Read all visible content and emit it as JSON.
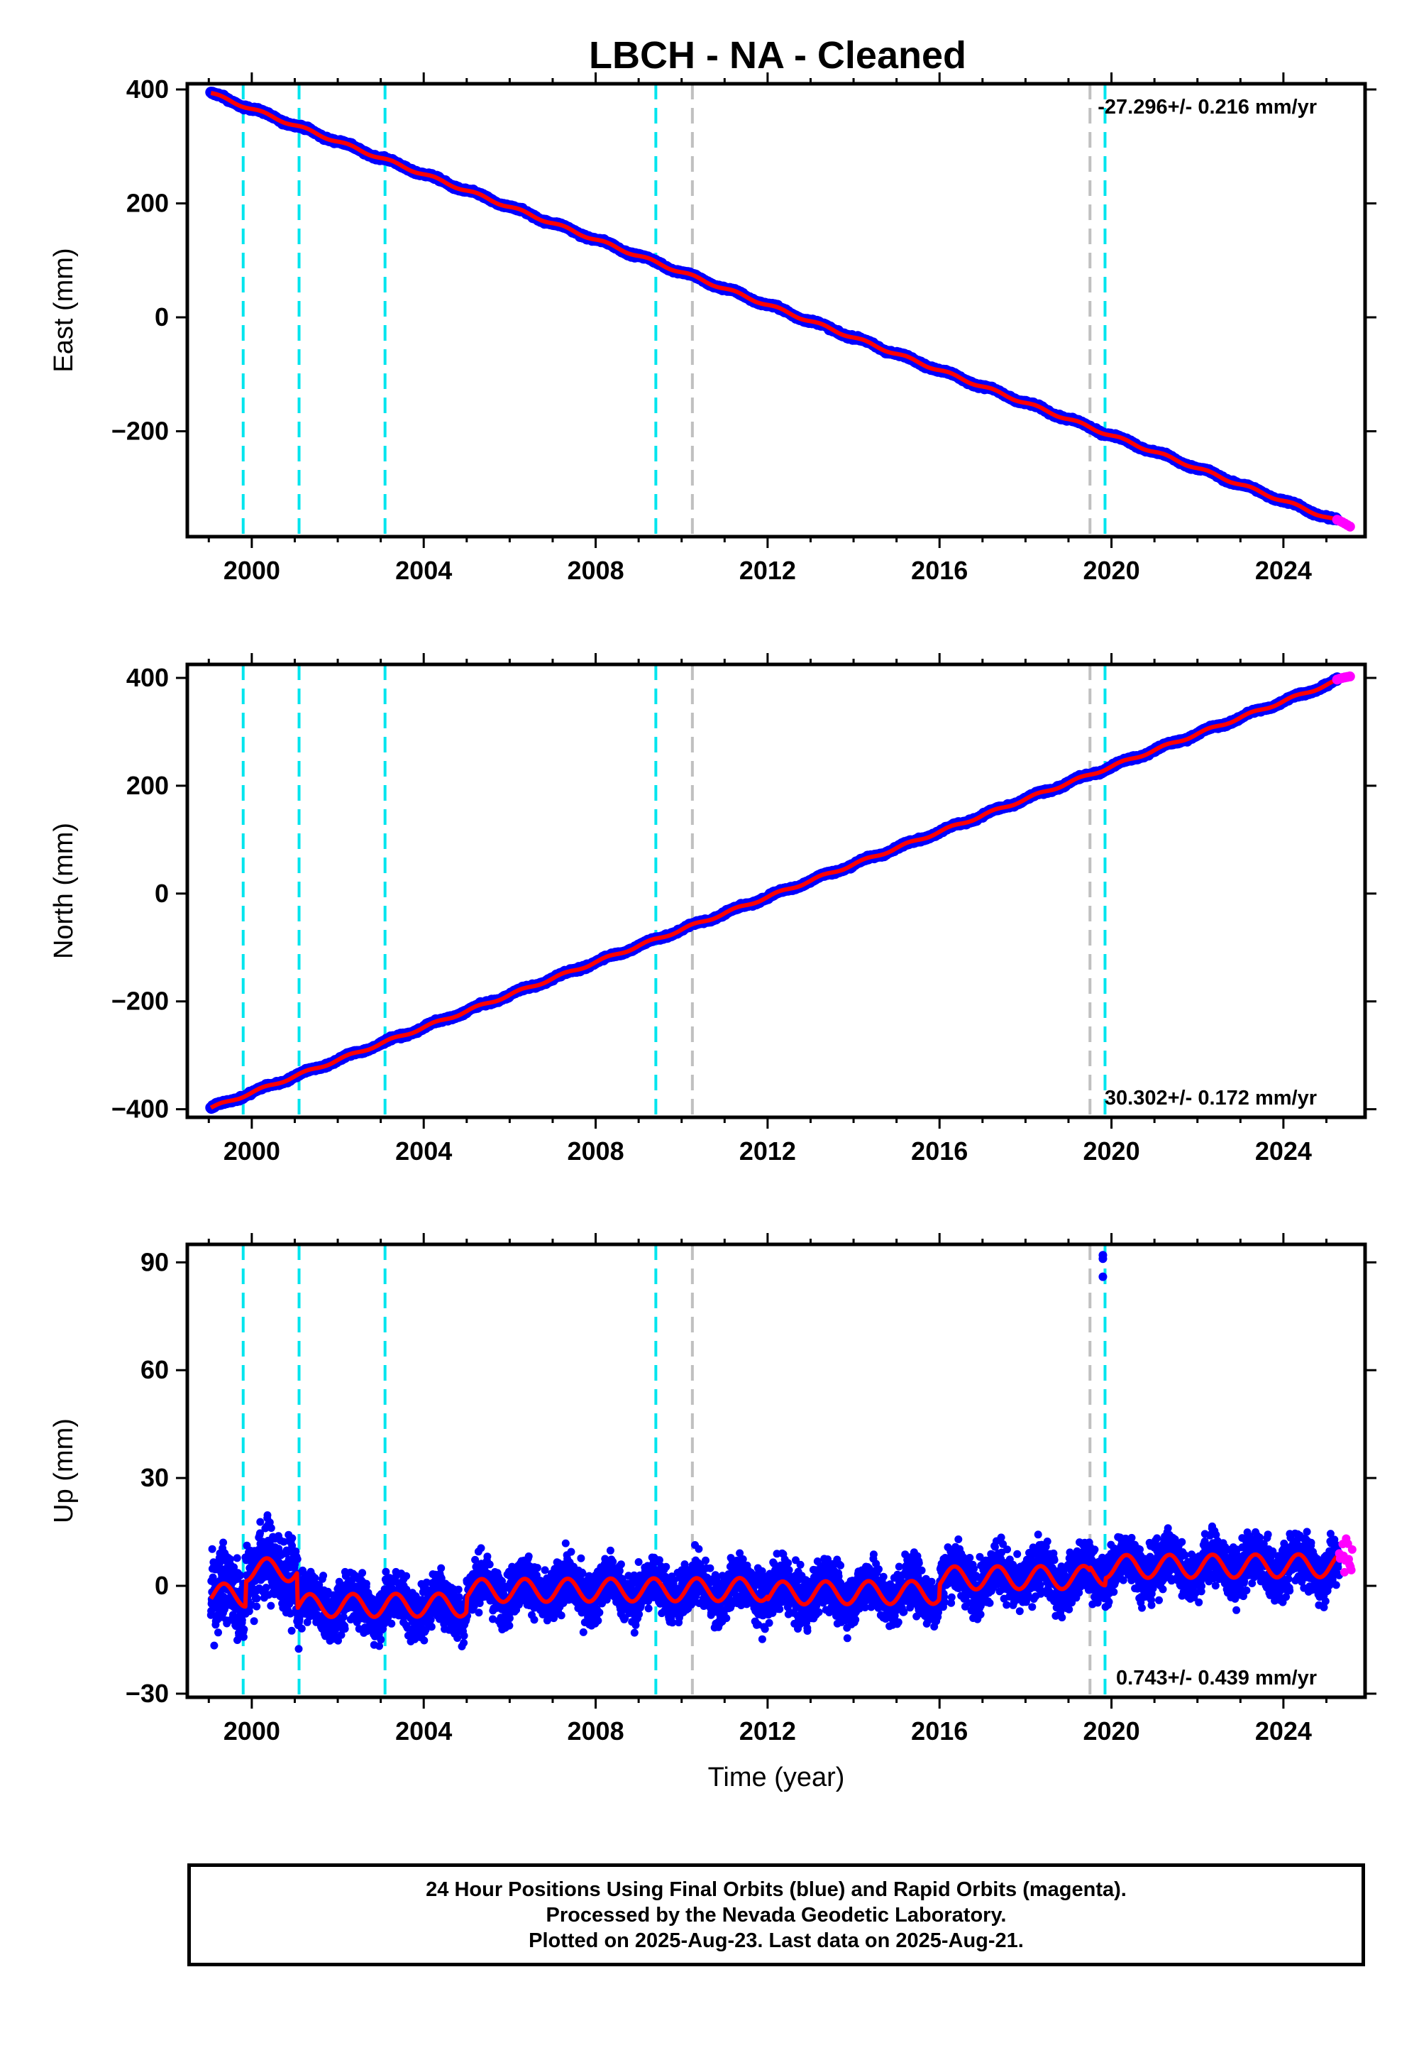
{
  "title": "LBCH  - NA - Cleaned",
  "chart_data": [
    {
      "type": "scatter",
      "component": "East",
      "ylabel": "East (mm)",
      "xlabel": "",
      "xlim": [
        1998.5,
        2025.9
      ],
      "ylim": [
        -385,
        410
      ],
      "yticks": [
        400,
        200,
        0,
        -200
      ],
      "ytick_labels": [
        "400",
        "200",
        "0",
        "−200"
      ],
      "xticks": [
        2000,
        2004,
        2008,
        2012,
        2016,
        2020,
        2024
      ],
      "xtick_labels": [
        "2000",
        "2004",
        "2008",
        "2012",
        "2016",
        "2020",
        "2024"
      ],
      "rate_label": "-27.296+/- 0.216 mm/yr",
      "rate_position": "top-right",
      "start": [
        1999.05,
        393
      ],
      "end": [
        2025.6,
        -368
      ],
      "series": [
        {
          "color": "#0000ff",
          "kind": "daily positions (final orbits)"
        },
        {
          "color": "#ff0000",
          "kind": "model fit"
        },
        {
          "color": "#ff00ff",
          "kind": "daily positions (rapid orbits)"
        }
      ]
    },
    {
      "type": "scatter",
      "component": "North",
      "ylabel": "North (mm)",
      "xlabel": "",
      "xlim": [
        1998.5,
        2025.9
      ],
      "ylim": [
        -415,
        425
      ],
      "yticks": [
        400,
        200,
        0,
        -200,
        -400
      ],
      "ytick_labels": [
        "400",
        "200",
        "0",
        "−200",
        "−400"
      ],
      "xticks": [
        2000,
        2004,
        2008,
        2012,
        2016,
        2020,
        2024
      ],
      "xtick_labels": [
        "2000",
        "2004",
        "2008",
        "2012",
        "2016",
        "2020",
        "2024"
      ],
      "rate_label": "30.302+/- 0.172 mm/yr",
      "rate_position": "bottom-right",
      "start": [
        1999.05,
        -398
      ],
      "end": [
        2025.6,
        405
      ],
      "series": [
        {
          "color": "#0000ff",
          "kind": "daily positions (final orbits)"
        },
        {
          "color": "#ff0000",
          "kind": "model fit"
        },
        {
          "color": "#ff00ff",
          "kind": "daily positions (rapid orbits)"
        }
      ]
    },
    {
      "type": "scatter",
      "component": "Up",
      "ylabel": "Up (mm)",
      "xlabel": "Time (year)",
      "xlim": [
        1998.5,
        2025.9
      ],
      "ylim": [
        -31,
        95
      ],
      "yticks": [
        90,
        60,
        30,
        0,
        -30
      ],
      "ytick_labels": [
        "90",
        "60",
        "30",
        "0",
        "−30"
      ],
      "xticks": [
        2000,
        2004,
        2008,
        2012,
        2016,
        2020,
        2024
      ],
      "xtick_labels": [
        "2000",
        "2004",
        "2008",
        "2012",
        "2016",
        "2020",
        "2024"
      ],
      "rate_label": "0.743+/- 0.439 mm/yr",
      "rate_position": "bottom-right",
      "outliers": [
        [
          2019.8,
          92
        ],
        [
          2019.8,
          91
        ],
        [
          2019.8,
          86
        ]
      ],
      "segments": [
        {
          "from": 1999.05,
          "to": 1999.85,
          "level": -2
        },
        {
          "from": 1999.85,
          "to": 2001.05,
          "level": 5
        },
        {
          "from": 2001.05,
          "to": 2005.0,
          "level": -5
        },
        {
          "from": 2005.0,
          "to": 2012.0,
          "level": -1
        },
        {
          "from": 2012.0,
          "to": 2016.0,
          "level": -2
        },
        {
          "from": 2016.0,
          "to": 2019.5,
          "level": 2
        },
        {
          "from": 2019.5,
          "to": 2019.85,
          "level": 3
        },
        {
          "from": 2019.85,
          "to": 2025.6,
          "level": 5
        }
      ],
      "series": [
        {
          "color": "#0000ff",
          "kind": "daily positions (final orbits)"
        },
        {
          "color": "#ff0000",
          "kind": "model fit"
        },
        {
          "color": "#ff00ff",
          "kind": "daily positions (rapid orbits)"
        }
      ]
    }
  ],
  "events": {
    "cyan": [
      1999.8,
      2001.1,
      2003.1,
      2009.4
    ],
    "cyan_late": [
      2019.85
    ],
    "gray": [
      2010.25,
      2019.5
    ],
    "cyan_color": "#00e5ee",
    "gray_color": "#c0c0c0"
  },
  "footer": {
    "line1": "24 Hour Positions Using Final Orbits (blue) and Rapid Orbits (magenta).",
    "line2": "Processed by the Nevada Geodetic Laboratory.",
    "line3": "Plotted on 2025-Aug-23. Last data on 2025-Aug-21."
  }
}
